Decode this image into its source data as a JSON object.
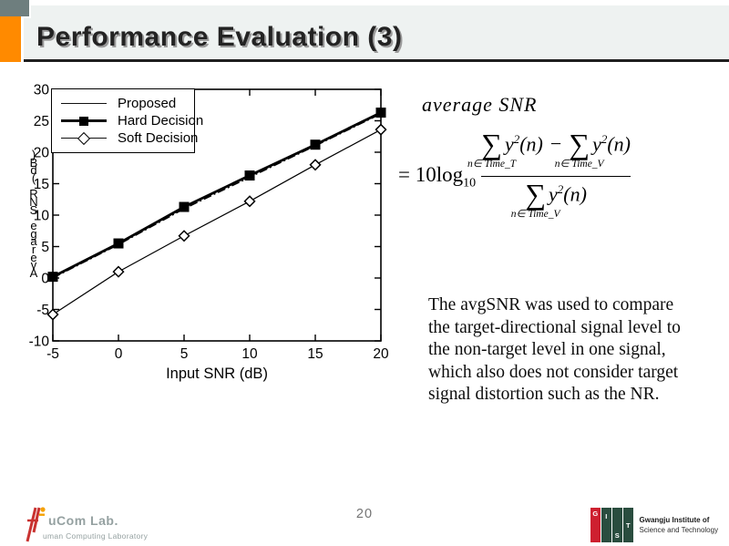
{
  "header": {
    "title": "Performance Evaluation (3)"
  },
  "chart_data": {
    "type": "line",
    "title": "",
    "xlabel": "Input SNR (dB)",
    "ylabel": "Average SNR (dB)",
    "xlim": [
      -5,
      20
    ],
    "ylim": [
      -10,
      30
    ],
    "xticks": [
      -5,
      0,
      5,
      10,
      15,
      20
    ],
    "yticks": [
      -10,
      -5,
      0,
      5,
      10,
      15,
      20,
      25,
      30
    ],
    "x": [
      -5,
      0,
      5,
      10,
      15,
      20
    ],
    "series": [
      {
        "name": "Proposed",
        "line": "dash-dot-thin",
        "marker": "none",
        "values": [
          0.0,
          5.3,
          11.0,
          16.0,
          21.0,
          26.1
        ]
      },
      {
        "name": "Hard Decision",
        "line": "thick-solid",
        "marker": "filled-square",
        "values": [
          0.2,
          5.5,
          11.3,
          16.3,
          21.2,
          26.3
        ]
      },
      {
        "name": "Soft Decision",
        "line": "thin-solid",
        "marker": "open-diamond",
        "values": [
          -5.8,
          1.0,
          6.7,
          12.2,
          18.0,
          23.6
        ]
      }
    ],
    "legend_position": "top-left",
    "grid": false
  },
  "formula": {
    "label": "average SNR",
    "eq_prefix": "= 10log",
    "log_base": "10",
    "sum_symbol": "∑",
    "minus": "−",
    "term_base": "y",
    "term_exp": "2",
    "term_arg": "(n)",
    "limit_num_left": "n∈ Time_T",
    "limit_num_right": "n∈ Time_V",
    "limit_den": "n∈ Time_V"
  },
  "paragraph": {
    "lines": [
      "The avgSNR was used to compare",
      "the target-directional signal level to",
      "the non-target level in one signal,",
      "which also does not consider target",
      "signal distortion such as the NR."
    ]
  },
  "footer": {
    "page_number": "20",
    "hucom": {
      "name": "uCom Lab.",
      "subtitle": "uman Computing Laboratory"
    },
    "gist": {
      "letters": [
        "G",
        "I",
        "S",
        "T"
      ],
      "line1": "Gwangju Institute of",
      "line2": "Science and Technology"
    }
  },
  "colors": {
    "accent_orange": "#FF8A00",
    "header_square_gray": "#6E7E7E",
    "band_bg": "#EEF2F1",
    "hucom_red": "#C93230",
    "hucom_orange": "#F5A100",
    "logo_text_gray": "#95A1A1",
    "gist_red": "#CE2030",
    "gist_green": "#2A4D3F",
    "page_number_gray": "#777777"
  }
}
